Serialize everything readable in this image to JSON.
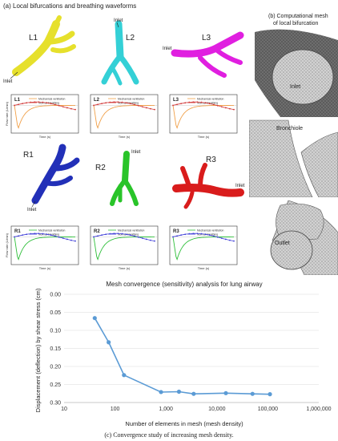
{
  "figure": {
    "panel_a_title": "(a) Local bifurcations and breathing waveforms",
    "panel_b_title_line1": "(b) Computational mesh",
    "panel_b_title_line2": "of local bifurcation",
    "caption": "(c) Convergence study of increasing mesh density."
  },
  "left_models": [
    {
      "label": "L1",
      "color": "#e6e02c"
    },
    {
      "label": "L2",
      "color": "#34d0d6"
    },
    {
      "label": "L3",
      "color": "#e01fe0"
    }
  ],
  "right_models": [
    {
      "label": "R1",
      "color": "#2230b8"
    },
    {
      "label": "R2",
      "color": "#29c429"
    },
    {
      "label": "R3",
      "color": "#d91c1c"
    }
  ],
  "inlet_label": "Inlet",
  "mesh_views": {
    "bronchiole_label": "Bronchiole",
    "outlet_label": "Outlet",
    "inlet_label": "Inlet"
  },
  "waveform_panels": {
    "ylabel": "Flow rate (L/min)",
    "xlabel": "Time (s)",
    "left_labels": [
      "L1",
      "L2",
      "L3"
    ],
    "right_labels": [
      "R1",
      "R2",
      "R3"
    ],
    "legend_mv": "Mechanical ventilation",
    "legend_nb": "Normal breathing",
    "colors": {
      "left_mv": "#f0a04a",
      "left_nb": "#d23a3a",
      "right_mv": "#2fbf3a",
      "right_nb": "#4040d8"
    }
  },
  "chart_data": {
    "type": "line",
    "title": "Mesh convergence (sensitivity) analysis for lung airway",
    "xlabel": "Number of elements in mesh (mesh density)",
    "ylabel": "Displacement (deflection) by shear stress (cm)",
    "x_scale": "log",
    "xlim": [
      10,
      1000000
    ],
    "ylim": [
      0.3,
      0.0
    ],
    "y_inverted": true,
    "x_tick_labels": [
      "10",
      "100",
      "1,000",
      "10,000",
      "100,000",
      "1,000,000"
    ],
    "y_tick_labels": [
      "0.00",
      "0.05",
      "0.10",
      "0.15",
      "0.20",
      "0.25",
      "0.30"
    ],
    "y_tick_values": [
      0.0,
      0.05,
      0.1,
      0.15,
      0.2,
      0.25,
      0.3
    ],
    "x_tick_values": [
      10,
      100,
      1000,
      10000,
      100000,
      1000000
    ],
    "grid": true,
    "color": "#5b9bd5",
    "x": [
      40,
      75,
      150,
      800,
      1800,
      3500,
      15000,
      50000,
      110000
    ],
    "y": [
      0.066,
      0.133,
      0.224,
      0.271,
      0.27,
      0.276,
      0.274,
      0.276,
      0.277
    ]
  }
}
